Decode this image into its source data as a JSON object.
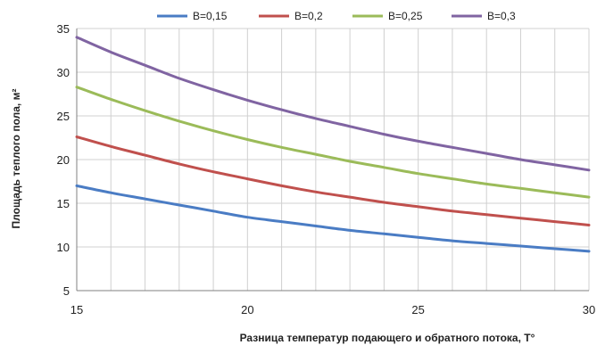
{
  "chart_data": {
    "type": "line",
    "title": "",
    "xlabel": "Разница температур подающего и обратного потока, T°",
    "ylabel": "Площадь теплого пола, м²",
    "xlim": [
      15,
      30
    ],
    "ylim": [
      5,
      35
    ],
    "x_ticks": [
      15,
      20,
      25,
      30
    ],
    "y_ticks": [
      5,
      10,
      15,
      20,
      25,
      30,
      35
    ],
    "grid": true,
    "legend_position": "top",
    "x": [
      15,
      16,
      17,
      18,
      19,
      20,
      21,
      22,
      23,
      24,
      25,
      26,
      27,
      28,
      29,
      30
    ],
    "series": [
      {
        "name": "B=0,15",
        "color": "#4a7cc4",
        "values": [
          17.0,
          16.2,
          15.5,
          14.8,
          14.1,
          13.4,
          12.9,
          12.4,
          11.9,
          11.5,
          11.1,
          10.7,
          10.4,
          10.1,
          9.8,
          9.5
        ]
      },
      {
        "name": "B=0,2",
        "color": "#c0504d",
        "values": [
          22.6,
          21.5,
          20.5,
          19.5,
          18.6,
          17.8,
          17.0,
          16.3,
          15.7,
          15.1,
          14.6,
          14.1,
          13.7,
          13.3,
          12.9,
          12.5
        ]
      },
      {
        "name": "B=0,25",
        "color": "#9bbb59",
        "values": [
          28.3,
          26.9,
          25.6,
          24.4,
          23.3,
          22.3,
          21.4,
          20.6,
          19.8,
          19.1,
          18.4,
          17.8,
          17.2,
          16.7,
          16.2,
          15.7
        ]
      },
      {
        "name": "B=0,3",
        "color": "#8064a2",
        "values": [
          34.0,
          32.3,
          30.8,
          29.3,
          28.0,
          26.8,
          25.7,
          24.7,
          23.8,
          22.9,
          22.1,
          21.4,
          20.7,
          20.0,
          19.4,
          18.8
        ]
      }
    ],
    "colors": {
      "grid": "#d0d0d0",
      "axis": "#808080",
      "text": "#222222"
    }
  }
}
